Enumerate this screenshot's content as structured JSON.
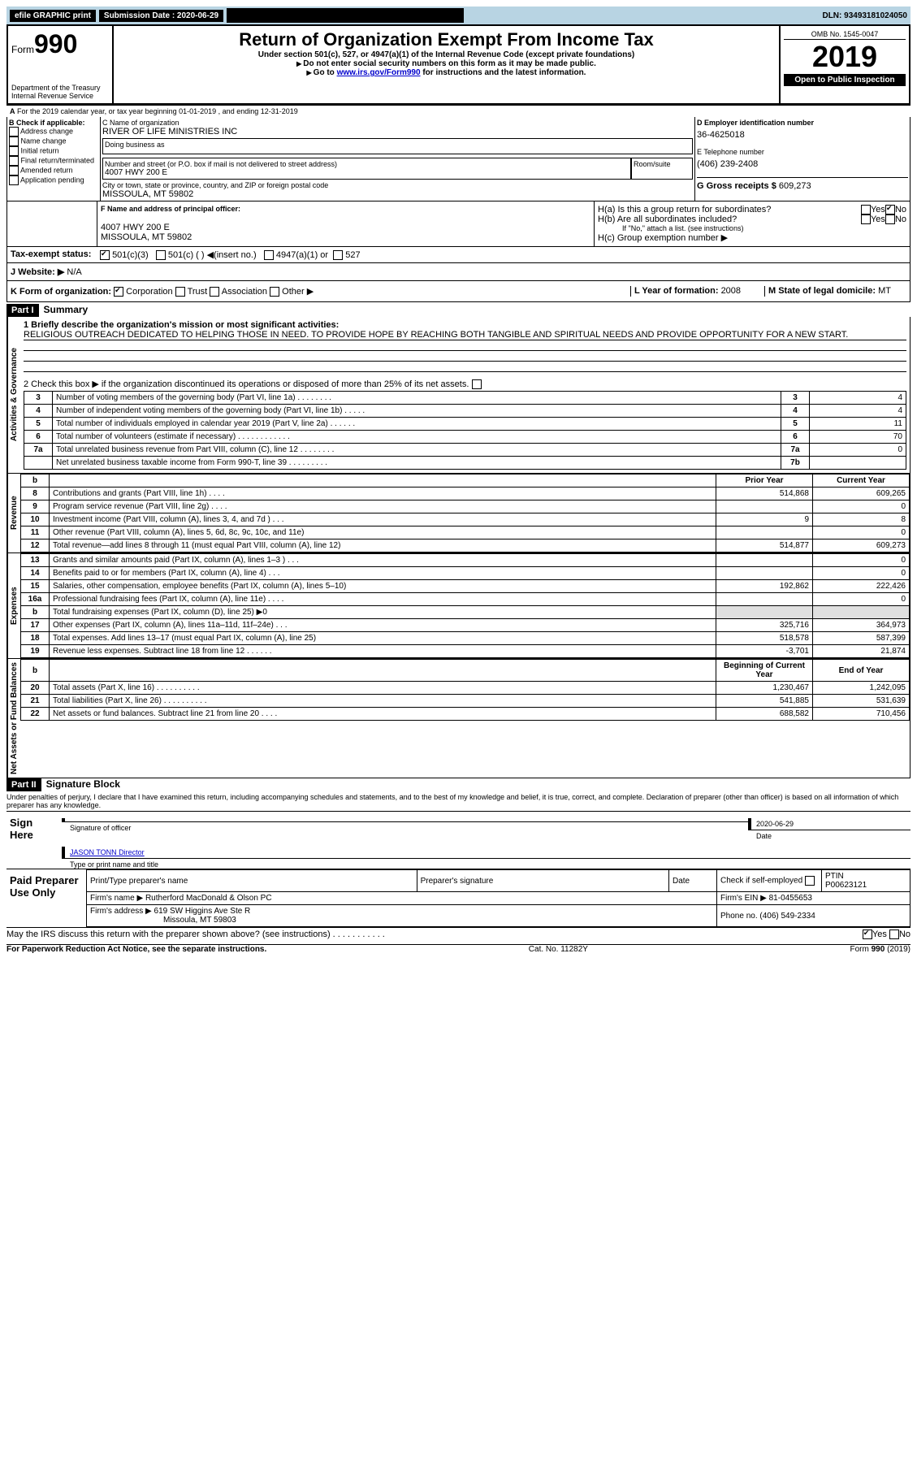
{
  "topbar": {
    "efile": "efile GRAPHIC print",
    "submission_label": "Submission Date : 2020-06-29",
    "dln": "DLN: 93493181024050"
  },
  "header": {
    "form_label": "Form",
    "form_number": "990",
    "dept1": "Department of the Treasury",
    "dept2": "Internal Revenue Service",
    "title": "Return of Organization Exempt From Income Tax",
    "subtitle1": "Under section 501(c), 527, or 4947(a)(1) of the Internal Revenue Code (except private foundations)",
    "subtitle2": "Do not enter social security numbers on this form as it may be made public.",
    "subtitle3_pre": "Go to ",
    "subtitle3_link": "www.irs.gov/Form990",
    "subtitle3_post": " for instructions and the latest information.",
    "omb": "OMB No. 1545-0047",
    "year": "2019",
    "open_public": "Open to Public Inspection"
  },
  "line_a": "For the 2019 calendar year, or tax year beginning 01-01-2019    , and ending 12-31-2019",
  "col_b": {
    "header": "B Check if applicable:",
    "items": [
      "Address change",
      "Name change",
      "Initial return",
      "Final return/terminated",
      "Amended return",
      "Application pending"
    ]
  },
  "col_c": {
    "name_label": "C Name of organization",
    "name": "RIVER OF LIFE MINISTRIES INC",
    "dba_label": "Doing business as",
    "dba": "",
    "addr_label": "Number and street (or P.O. box if mail is not delivered to street address)",
    "room_label": "Room/suite",
    "addr": "4007 HWY 200 E",
    "city_label": "City or town, state or province, country, and ZIP or foreign postal code",
    "city": "MISSOULA, MT  59802"
  },
  "col_de": {
    "d_label": "D Employer identification number",
    "d_val": "36-4625018",
    "e_label": "E Telephone number",
    "e_val": "(406) 239-2408",
    "g_label": "G Gross receipts $ ",
    "g_val": "609,273"
  },
  "section_f": {
    "f_label": "F  Name and address of principal officer:",
    "f_addr1": "4007 HWY 200 E",
    "f_addr2": "MISSOULA, MT  59802",
    "h_a": "H(a)  Is this a group return for subordinates?",
    "h_b": "H(b)  Are all subordinates included?",
    "h_b_note": "If \"No,\" attach a list. (see instructions)",
    "h_c": "H(c)  Group exemption number ▶",
    "yes": "Yes",
    "no": "No"
  },
  "tax_status": {
    "label": "Tax-exempt status:",
    "opt1": "501(c)(3)",
    "opt2": "501(c) (  ) ◀(insert no.)",
    "opt3": "4947(a)(1) or",
    "opt4": "527"
  },
  "website": {
    "label": "J   Website: ▶",
    "val": "N/A"
  },
  "line_k": {
    "label": "K Form of organization:",
    "opts": [
      "Corporation",
      "Trust",
      "Association",
      "Other ▶"
    ],
    "l_label": "L Year of formation: ",
    "l_val": "2008",
    "m_label": "M State of legal domicile: ",
    "m_val": "MT"
  },
  "partI": {
    "bar": "Part I",
    "title": "Summary",
    "q1": "1  Briefly describe the organization's mission or most significant activities:",
    "mission": "RELIGIOUS OUTREACH DEDICATED TO HELPING THOSE IN NEED. TO PROVIDE HOPE BY REACHING BOTH TANGIBLE AND SPIRITUAL NEEDS AND PROVIDE OPPORTUNITY FOR A NEW START.",
    "q2": "2   Check this box ▶      if the organization discontinued its operations or disposed of more than 25% of its net assets."
  },
  "vlabels": {
    "gov": "Activities & Governance",
    "rev": "Revenue",
    "exp": "Expenses",
    "net": "Net Assets or Fund Balances"
  },
  "gov_rows": [
    {
      "n": "3",
      "t": "Number of voting members of the governing body (Part VI, line 1a)   .    .    .    .    .    .    .    .",
      "b": "3",
      "v": "4"
    },
    {
      "n": "4",
      "t": "Number of independent voting members of the governing body (Part VI, line 1b)   .    .    .    .    .",
      "b": "4",
      "v": "4"
    },
    {
      "n": "5",
      "t": "Total number of individuals employed in calendar year 2019 (Part V, line 2a)   .    .    .    .    .    .",
      "b": "5",
      "v": "11"
    },
    {
      "n": "6",
      "t": "Total number of volunteers (estimate if necessary)    .    .    .    .    .    .    .    .    .    .    .    .",
      "b": "6",
      "v": "70"
    },
    {
      "n": "7a",
      "t": "Total unrelated business revenue from Part VIII, column (C), line 12   .    .    .    .    .    .    .    .",
      "b": "7a",
      "v": "0"
    },
    {
      "n": "",
      "t": "Net unrelated business taxable income from Form 990-T, line 39    .    .    .    .    .    .    .    .    .",
      "b": "7b",
      "v": ""
    }
  ],
  "twocol_header": {
    "prior": "Prior Year",
    "curr": "Current Year"
  },
  "rev_rows": [
    {
      "n": "8",
      "t": "Contributions and grants (Part VIII, line 1h)    .    .    .    .",
      "p": "514,868",
      "c": "609,265"
    },
    {
      "n": "9",
      "t": "Program service revenue (Part VIII, line 2g)    .    .    .    .",
      "p": "",
      "c": "0"
    },
    {
      "n": "10",
      "t": "Investment income (Part VIII, column (A), lines 3, 4, and 7d )    .    .    .",
      "p": "9",
      "c": "8"
    },
    {
      "n": "11",
      "t": "Other revenue (Part VIII, column (A), lines 5, 6d, 8c, 9c, 10c, and 11e)",
      "p": "",
      "c": "0"
    },
    {
      "n": "12",
      "t": "Total revenue—add lines 8 through 11 (must equal Part VIII, column (A), line 12)",
      "p": "514,877",
      "c": "609,273"
    }
  ],
  "exp_rows": [
    {
      "n": "13",
      "t": "Grants and similar amounts paid (Part IX, column (A), lines 1–3 )   .    .    .",
      "p": "",
      "c": "0"
    },
    {
      "n": "14",
      "t": "Benefits paid to or for members (Part IX, column (A), line 4)    .    .    .",
      "p": "",
      "c": "0"
    },
    {
      "n": "15",
      "t": "Salaries, other compensation, employee benefits (Part IX, column (A), lines 5–10)",
      "p": "192,862",
      "c": "222,426"
    },
    {
      "n": "16a",
      "t": "Professional fundraising fees (Part IX, column (A), line 11e)   .    .    .    .",
      "p": "",
      "c": "0"
    },
    {
      "n": "b",
      "t": "Total fundraising expenses (Part IX, column (D), line 25) ▶0",
      "p": "__GRAY__",
      "c": "__GRAY__"
    },
    {
      "n": "17",
      "t": "Other expenses (Part IX, column (A), lines 11a–11d, 11f–24e)    .    .    .",
      "p": "325,716",
      "c": "364,973"
    },
    {
      "n": "18",
      "t": "Total expenses. Add lines 13–17 (must equal Part IX, column (A), line 25)",
      "p": "518,578",
      "c": "587,399"
    },
    {
      "n": "19",
      "t": "Revenue less expenses. Subtract line 18 from line 12    .    .    .    .    .    .",
      "p": "-3,701",
      "c": "21,874"
    }
  ],
  "net_header": {
    "begin": "Beginning of Current Year",
    "end": "End of Year"
  },
  "net_rows": [
    {
      "n": "20",
      "t": "Total assets (Part X, line 16)   .    .    .    .    .    .    .    .    .    .",
      "p": "1,230,467",
      "c": "1,242,095"
    },
    {
      "n": "21",
      "t": "Total liabilities (Part X, line 26)   .    .    .    .    .    .    .    .    .    .",
      "p": "541,885",
      "c": "531,639"
    },
    {
      "n": "22",
      "t": "Net assets or fund balances. Subtract line 21 from line 20    .    .    .    .",
      "p": "688,582",
      "c": "710,456"
    }
  ],
  "partII": {
    "bar": "Part II",
    "title": "Signature Block"
  },
  "perjury": "Under penalties of perjury, I declare that I have examined this return, including accompanying schedules and statements, and to the best of my knowledge and belief, it is true, correct, and complete. Declaration of preparer (other than officer) is based on all information of which preparer has any knowledge.",
  "sign": {
    "here": "Sign Here",
    "sig_officer": "Signature of officer",
    "date_label": "Date",
    "date": "2020-06-29",
    "name": "JASON TONN  Director",
    "name_label": "Type or print name and title"
  },
  "paid": {
    "label": "Paid Preparer Use Only",
    "col1": "Print/Type preparer's name",
    "col2": "Preparer's signature",
    "col3": "Date",
    "check": "Check       if self-employed",
    "ptin_l": "PTIN",
    "ptin": "P00623121",
    "firm_name_l": "Firm's name     ▶",
    "firm_name": "Rutherford MacDonald & Olson PC",
    "firm_ein_l": "Firm's EIN ▶",
    "firm_ein": "81-0455653",
    "firm_addr_l": "Firm's address ▶",
    "firm_addr1": "619 SW Higgins Ave Ste R",
    "firm_addr2": "Missoula, MT  59803",
    "phone_l": "Phone no. ",
    "phone": "(406) 549-2334"
  },
  "discuss": "May the IRS discuss this return with the preparer shown above? (see instructions)    .    .    .    .    .    .    .    .    .    .    .",
  "footer": {
    "left": "For Paperwork Reduction Act Notice, see the separate instructions.",
    "mid": "Cat. No. 11282Y",
    "right_l": "Form ",
    "right_b": "990",
    "right_r": " (2019)"
  },
  "b_line": "b"
}
